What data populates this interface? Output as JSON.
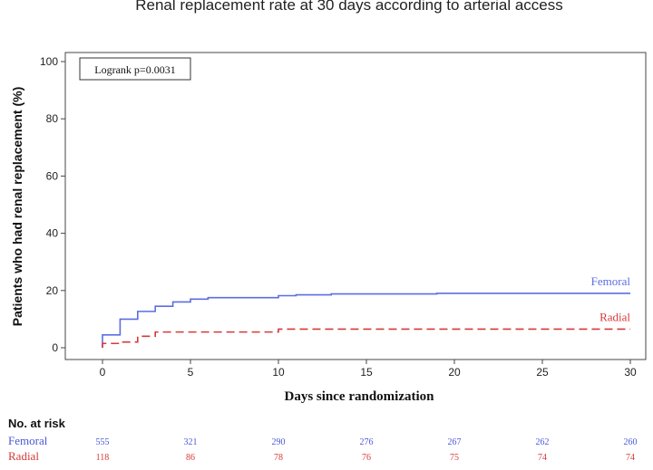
{
  "chart_data": {
    "type": "line",
    "title": "Renal replacement rate at 30 days according to arterial access",
    "xlabel": "Days since randomization",
    "ylabel": "Patients who had renal replacement (%)",
    "xlim": [
      0,
      30
    ],
    "ylim": [
      0,
      100
    ],
    "x_ticks": [
      "0",
      "5",
      "10",
      "15",
      "20",
      "25",
      "30"
    ],
    "y_ticks": [
      "0",
      "20",
      "40",
      "60",
      "80",
      "100"
    ],
    "annotation": "Logrank p=0.0031",
    "series": [
      {
        "name": "Femoral",
        "color": "#5b6ee1",
        "style": "solid",
        "step_points": [
          [
            0,
            4.5
          ],
          [
            1,
            10
          ],
          [
            2,
            12.7
          ],
          [
            3,
            14.5
          ],
          [
            4,
            16
          ],
          [
            5,
            17
          ],
          [
            6,
            17.5
          ],
          [
            10,
            18.2
          ],
          [
            11,
            18.5
          ],
          [
            13,
            18.8
          ],
          [
            19,
            19
          ],
          [
            30,
            19
          ]
        ]
      },
      {
        "name": "Radial",
        "color": "#d63a3a",
        "style": "dashed",
        "step_points": [
          [
            0,
            1.5
          ],
          [
            1,
            2
          ],
          [
            2,
            4
          ],
          [
            3,
            5.5
          ],
          [
            5,
            5.5
          ],
          [
            10,
            6.5
          ],
          [
            30,
            6.5
          ]
        ]
      }
    ],
    "risk_table": {
      "title": "No. at risk",
      "times": [
        0,
        5,
        10,
        15,
        20,
        25,
        30
      ],
      "rows": [
        {
          "name": "Femoral",
          "color": "#4b57d6",
          "values": [
            "555",
            "321",
            "290",
            "276",
            "267",
            "262",
            "260"
          ]
        },
        {
          "name": "Radial",
          "color": "#d63a3a",
          "values": [
            "118",
            "86",
            "78",
            "76",
            "75",
            "74",
            "74"
          ]
        }
      ]
    }
  }
}
